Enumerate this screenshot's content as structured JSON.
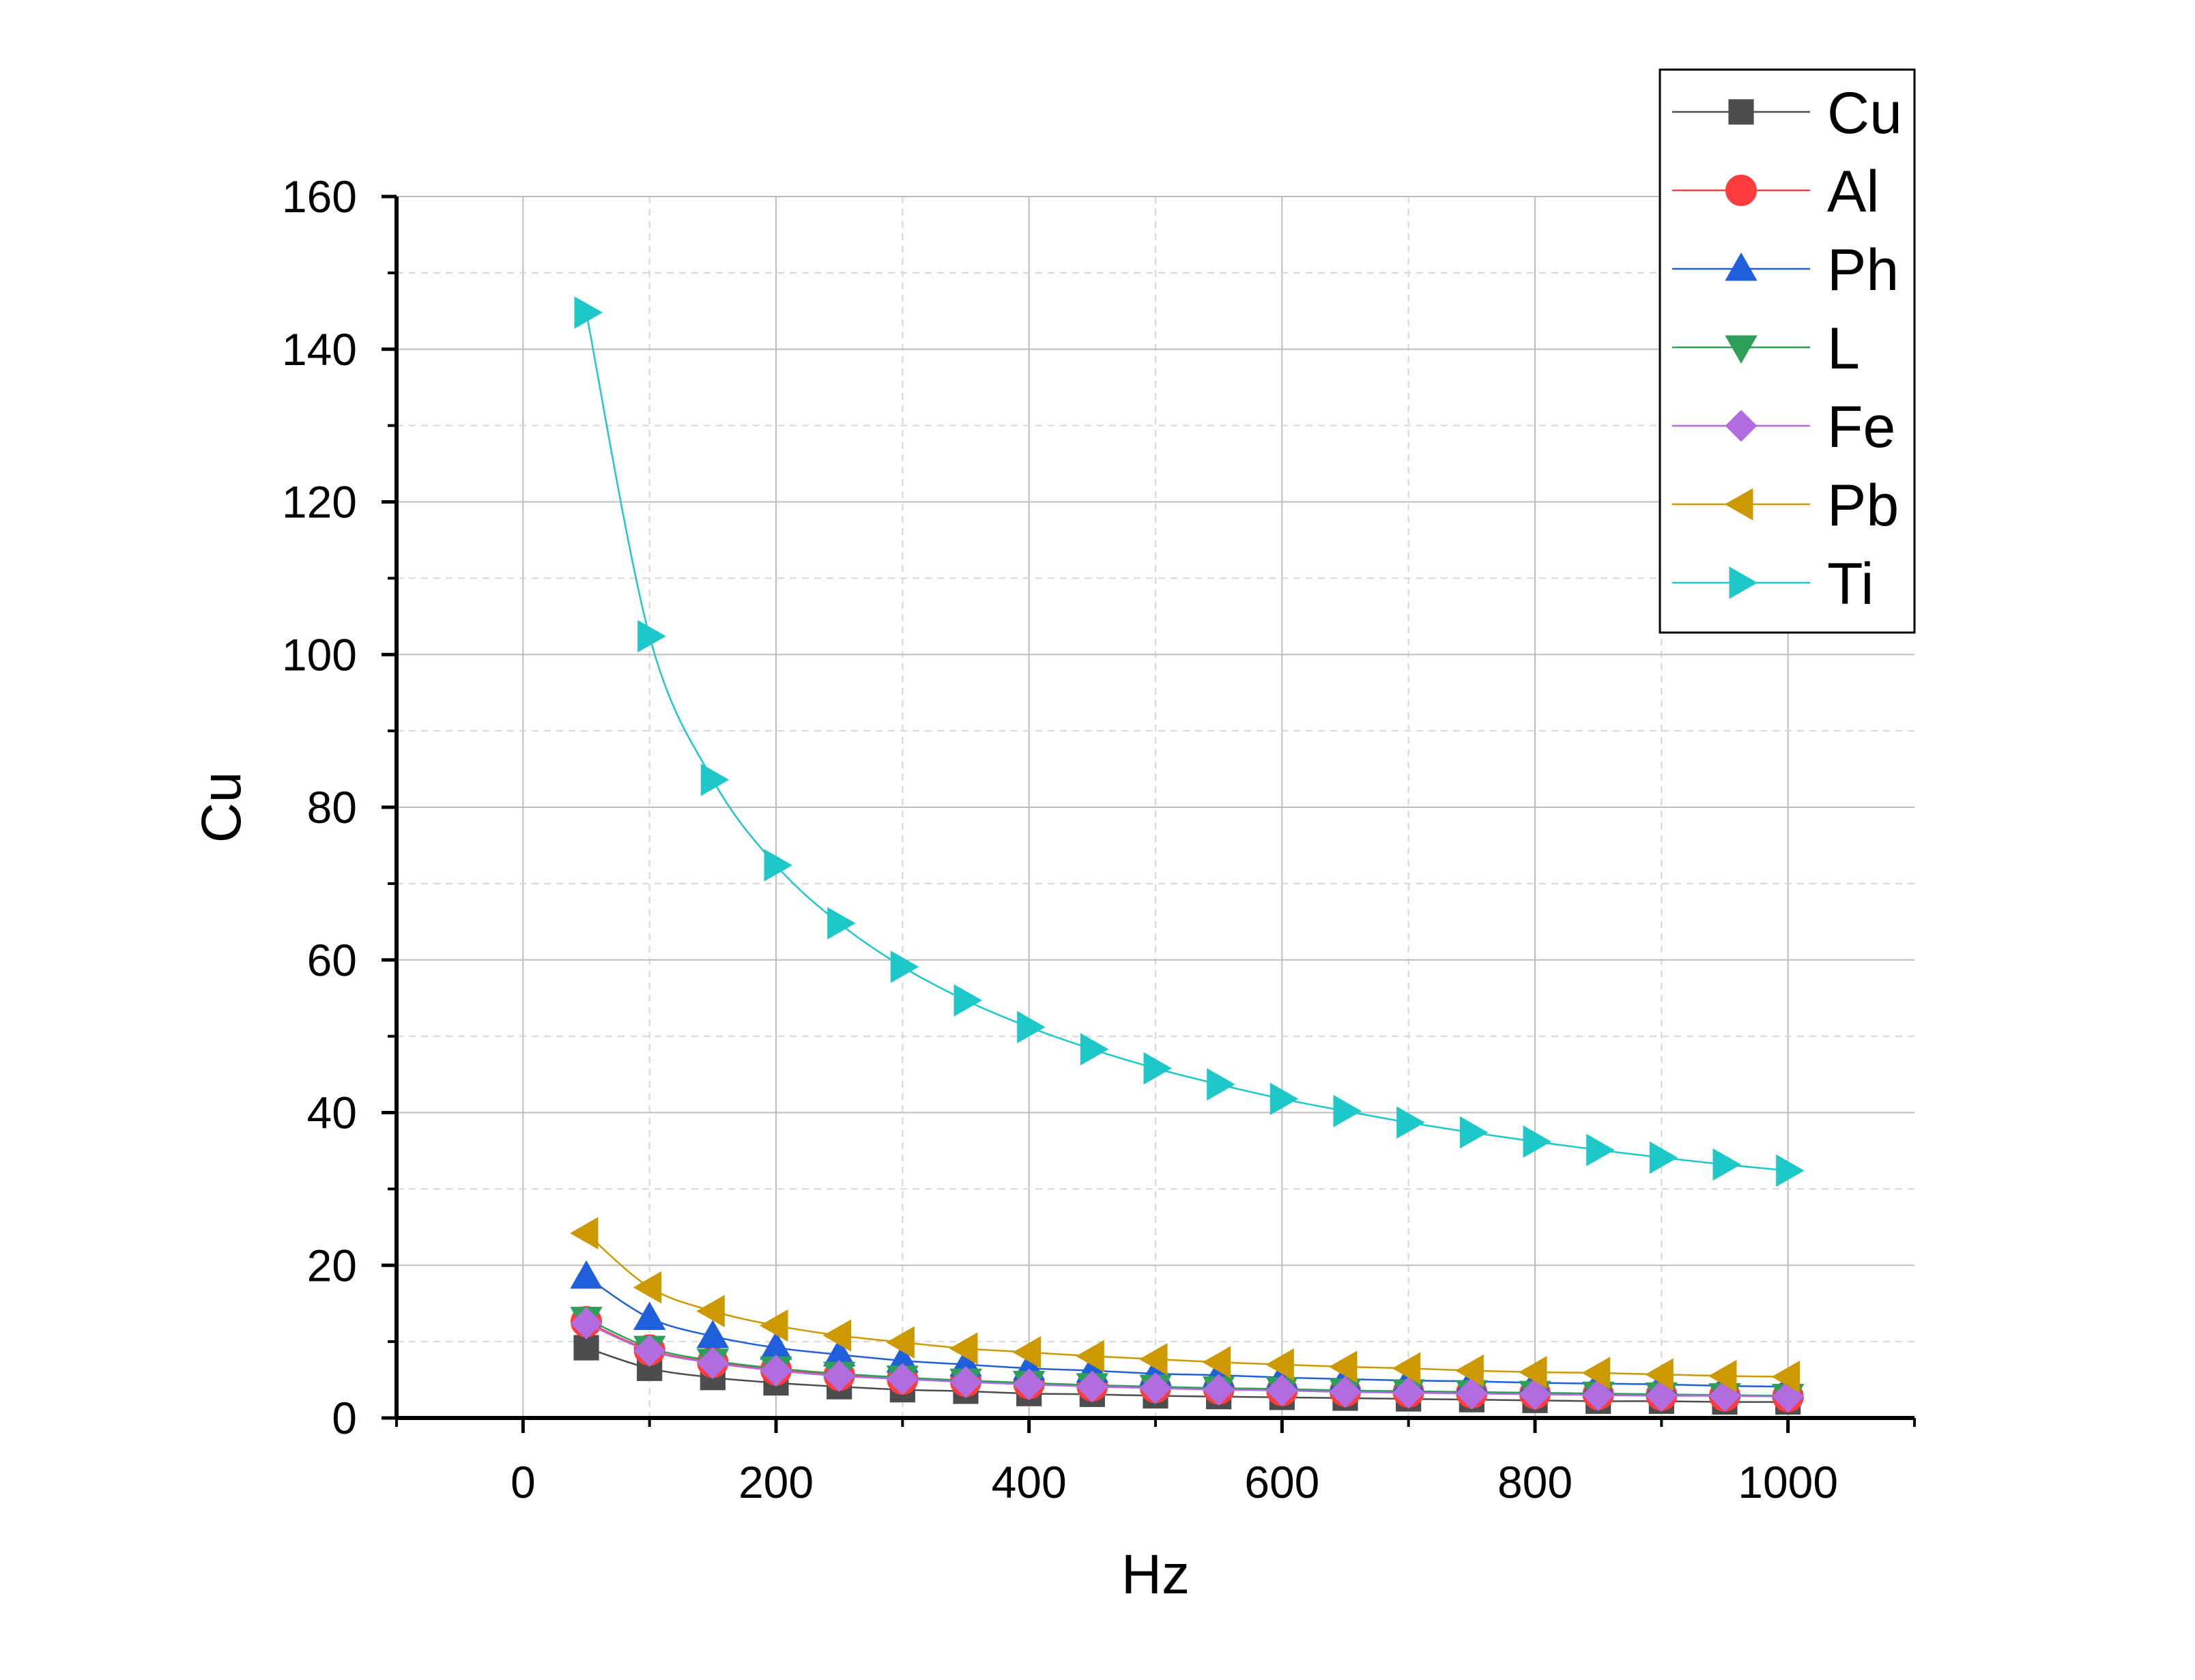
{
  "chart_data": {
    "type": "line",
    "xlabel": "Hz",
    "ylabel": "Cu",
    "xlim": [
      -100,
      1100
    ],
    "ylim": [
      0,
      160
    ],
    "xticks": [
      0,
      200,
      400,
      600,
      800,
      1000
    ],
    "xtick_labels": [
      "0",
      "200",
      "400",
      "600",
      "800",
      "1000"
    ],
    "yticks": [
      0,
      20,
      40,
      60,
      80,
      100,
      120,
      140,
      160
    ],
    "ytick_labels": [
      "0",
      "20",
      "40",
      "60",
      "80",
      "100",
      "120",
      "140",
      "160"
    ],
    "grid": true,
    "legend_position": "top-right",
    "x": [
      50,
      100,
      150,
      200,
      250,
      300,
      350,
      400,
      450,
      500,
      550,
      600,
      650,
      700,
      750,
      800,
      850,
      900,
      950,
      1000
    ],
    "series": [
      {
        "name": "Cu",
        "color": "#4d4d4d",
        "marker": "square",
        "values": [
          9.2,
          6.5,
          5.3,
          4.6,
          4.1,
          3.7,
          3.5,
          3.2,
          3.1,
          2.9,
          2.8,
          2.7,
          2.6,
          2.5,
          2.4,
          2.3,
          2.2,
          2.2,
          2.1,
          2.1
        ]
      },
      {
        "name": "Al",
        "color": "#ff3b3b",
        "marker": "circle",
        "values": [
          12.6,
          8.9,
          7.3,
          6.3,
          5.6,
          5.1,
          4.8,
          4.5,
          4.2,
          4.0,
          3.8,
          3.6,
          3.5,
          3.4,
          3.3,
          3.2,
          3.1,
          3.0,
          2.9,
          2.8
        ]
      },
      {
        "name": "Ph",
        "color": "#1f5fd9",
        "marker": "triangle-up",
        "values": [
          18.5,
          13.1,
          10.7,
          9.2,
          8.3,
          7.5,
          7.0,
          6.5,
          6.2,
          5.8,
          5.6,
          5.3,
          5.1,
          4.9,
          4.8,
          4.6,
          4.5,
          4.4,
          4.2,
          4.1
        ]
      },
      {
        "name": "L",
        "color": "#2e9e5b",
        "marker": "triangle-down",
        "values": [
          13.0,
          9.2,
          7.5,
          6.5,
          5.8,
          5.3,
          4.9,
          4.6,
          4.3,
          4.1,
          3.9,
          3.8,
          3.6,
          3.5,
          3.4,
          3.3,
          3.2,
          3.1,
          3.0,
          2.9
        ]
      },
      {
        "name": "Fe",
        "color": "#b36be0",
        "marker": "diamond",
        "values": [
          12.4,
          8.8,
          7.2,
          6.2,
          5.5,
          5.1,
          4.7,
          4.4,
          4.1,
          3.9,
          3.7,
          3.6,
          3.4,
          3.3,
          3.2,
          3.1,
          3.0,
          2.9,
          2.9,
          2.8
        ]
      },
      {
        "name": "Pb",
        "color": "#cc9900",
        "marker": "triangle-left",
        "values": [
          24.2,
          17.1,
          14.0,
          12.1,
          10.8,
          9.9,
          9.1,
          8.6,
          8.1,
          7.7,
          7.3,
          7.0,
          6.7,
          6.5,
          6.2,
          6.0,
          5.9,
          5.7,
          5.5,
          5.4
        ]
      },
      {
        "name": "Ti",
        "color": "#1fc8c8",
        "marker": "triangle-right",
        "values": [
          144.8,
          102.4,
          83.6,
          72.4,
          64.8,
          59.1,
          54.7,
          51.2,
          48.3,
          45.8,
          43.7,
          41.8,
          40.2,
          38.7,
          37.4,
          36.2,
          35.1,
          34.1,
          33.2,
          32.4
        ]
      }
    ]
  }
}
